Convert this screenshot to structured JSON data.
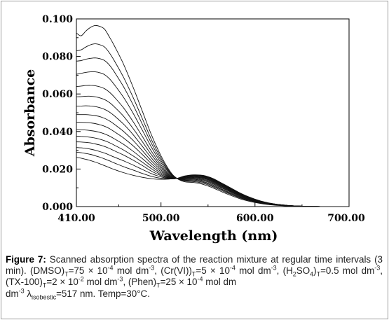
{
  "chart_data": {
    "type": "line",
    "xlabel": "Wavelength (nm)",
    "ylabel": "Absorbance",
    "xlim": [
      410,
      700
    ],
    "ylim": [
      0.0,
      0.1
    ],
    "x_ticks": [
      "410.00",
      "500.00",
      "600.00",
      "700.00"
    ],
    "y_ticks": [
      "0.000",
      "0.020",
      "0.040",
      "0.060",
      "0.080",
      "0.100"
    ],
    "grid": false,
    "x": [
      410,
      415,
      420,
      425,
      430,
      435,
      440,
      445,
      450,
      460,
      470,
      480,
      490,
      500,
      510,
      517,
      525,
      535,
      545,
      555,
      565,
      575,
      585,
      595,
      605,
      615,
      625,
      635,
      645,
      660,
      680,
      700
    ],
    "series": [
      {
        "values": [
          0.0925,
          0.091,
          0.0935,
          0.0955,
          0.0965,
          0.096,
          0.0945,
          0.0905,
          0.086,
          0.076,
          0.064,
          0.051,
          0.038,
          0.027,
          0.0185,
          0.015,
          0.0132,
          0.0128,
          0.0118,
          0.01,
          0.0078,
          0.0058,
          0.004,
          0.0027,
          0.0017,
          0.001,
          0.0006,
          0.0003,
          0.0002,
          0.0001,
          0.0,
          0.0
        ]
      },
      {
        "values": [
          0.083,
          0.0835,
          0.085,
          0.0862,
          0.0867,
          0.0862,
          0.085,
          0.082,
          0.078,
          0.069,
          0.0585,
          0.047,
          0.0355,
          0.0258,
          0.018,
          0.015,
          0.0136,
          0.0133,
          0.0124,
          0.0106,
          0.0084,
          0.0063,
          0.0044,
          0.003,
          0.0019,
          0.0011,
          0.0007,
          0.0004,
          0.0002,
          0.0001,
          0.0,
          0.0
        ]
      },
      {
        "values": [
          0.0775,
          0.0778,
          0.0785,
          0.079,
          0.0792,
          0.0788,
          0.0778,
          0.0755,
          0.072,
          0.064,
          0.0545,
          0.044,
          0.0335,
          0.0246,
          0.0176,
          0.015,
          0.0139,
          0.0137,
          0.0129,
          0.0111,
          0.0089,
          0.0067,
          0.0047,
          0.0032,
          0.0021,
          0.0012,
          0.0007,
          0.0004,
          0.0002,
          0.0001,
          0.0,
          0.0
        ]
      },
      {
        "values": [
          0.0705,
          0.071,
          0.0715,
          0.0718,
          0.0718,
          0.0713,
          0.0703,
          0.0682,
          0.0652,
          0.0583,
          0.05,
          0.0408,
          0.0315,
          0.0234,
          0.0172,
          0.015,
          0.0142,
          0.0141,
          0.0133,
          0.0116,
          0.0093,
          0.0071,
          0.005,
          0.0034,
          0.0022,
          0.0013,
          0.0008,
          0.0004,
          0.0002,
          0.0001,
          0.0,
          0.0
        ]
      },
      {
        "values": [
          0.064,
          0.0642,
          0.0645,
          0.0646,
          0.0644,
          0.0638,
          0.0628,
          0.061,
          0.0585,
          0.0527,
          0.0455,
          0.0375,
          0.0293,
          0.0222,
          0.0167,
          0.015,
          0.0145,
          0.0145,
          0.0138,
          0.0121,
          0.0098,
          0.0075,
          0.0053,
          0.0036,
          0.0023,
          0.0014,
          0.0008,
          0.0005,
          0.0002,
          0.0001,
          0.0,
          0.0
        ]
      },
      {
        "values": [
          0.0585,
          0.0586,
          0.0588,
          0.0588,
          0.0585,
          0.0579,
          0.057,
          0.0555,
          0.0533,
          0.0482,
          0.0418,
          0.0347,
          0.0275,
          0.0212,
          0.0163,
          0.015,
          0.0148,
          0.0149,
          0.0142,
          0.0125,
          0.0102,
          0.0078,
          0.0056,
          0.0038,
          0.0024,
          0.0015,
          0.0009,
          0.0005,
          0.0003,
          0.0001,
          0.0,
          0.0
        ]
      },
      {
        "values": [
          0.0535,
          0.0536,
          0.0537,
          0.0536,
          0.0533,
          0.0527,
          0.0518,
          0.0504,
          0.0485,
          0.044,
          0.0385,
          0.0322,
          0.0258,
          0.0203,
          0.016,
          0.015,
          0.015,
          0.0152,
          0.0146,
          0.0129,
          0.0106,
          0.0081,
          0.0058,
          0.004,
          0.0025,
          0.0015,
          0.0009,
          0.0005,
          0.0003,
          0.0001,
          0.0,
          0.0
        ]
      },
      {
        "values": [
          0.049,
          0.049,
          0.049,
          0.0488,
          0.0485,
          0.0479,
          0.047,
          0.0457,
          0.044,
          0.0401,
          0.0354,
          0.0299,
          0.0242,
          0.0194,
          0.0157,
          0.015,
          0.0152,
          0.0155,
          0.015,
          0.0133,
          0.0109,
          0.0084,
          0.006,
          0.0041,
          0.0026,
          0.0016,
          0.001,
          0.0005,
          0.0003,
          0.0001,
          0.0,
          0.0
        ]
      },
      {
        "values": [
          0.045,
          0.0449,
          0.0448,
          0.0446,
          0.0442,
          0.0436,
          0.0428,
          0.0416,
          0.04,
          0.0366,
          0.0325,
          0.0278,
          0.0228,
          0.0186,
          0.0155,
          0.015,
          0.0154,
          0.0158,
          0.0153,
          0.0136,
          0.0112,
          0.0087,
          0.0062,
          0.0043,
          0.0027,
          0.0016,
          0.001,
          0.0006,
          0.0003,
          0.0001,
          0.0,
          0.0
        ]
      },
      {
        "values": [
          0.041,
          0.0409,
          0.0408,
          0.0405,
          0.0401,
          0.0395,
          0.0387,
          0.0376,
          0.0362,
          0.0332,
          0.0296,
          0.0256,
          0.0214,
          0.0178,
          0.0153,
          0.015,
          0.0156,
          0.0161,
          0.0156,
          0.0139,
          0.0115,
          0.0089,
          0.0064,
          0.0044,
          0.0028,
          0.0017,
          0.001,
          0.0006,
          0.0003,
          0.0001,
          0.0,
          0.0
        ]
      },
      {
        "values": [
          0.0375,
          0.0374,
          0.0372,
          0.0369,
          0.0365,
          0.0359,
          0.0351,
          0.0341,
          0.0328,
          0.0302,
          0.0271,
          0.0237,
          0.0201,
          0.0171,
          0.0151,
          0.015,
          0.0158,
          0.0163,
          0.0159,
          0.0142,
          0.0117,
          0.0091,
          0.0066,
          0.0045,
          0.0029,
          0.0017,
          0.001,
          0.0006,
          0.0003,
          0.0001,
          0.0,
          0.0
        ]
      },
      {
        "values": [
          0.0345,
          0.0344,
          0.0342,
          0.0339,
          0.0334,
          0.0328,
          0.032,
          0.031,
          0.0298,
          0.0275,
          0.0248,
          0.0219,
          0.0188,
          0.0165,
          0.015,
          0.015,
          0.016,
          0.0165,
          0.0161,
          0.0144,
          0.0119,
          0.0093,
          0.0067,
          0.0046,
          0.003,
          0.0018,
          0.0011,
          0.0006,
          0.0003,
          0.0001,
          0.0,
          0.0
        ]
      },
      {
        "values": [
          0.0315,
          0.0313,
          0.031,
          0.0306,
          0.03,
          0.0293,
          0.0285,
          0.0275,
          0.0264,
          0.0244,
          0.0222,
          0.0198,
          0.0175,
          0.0158,
          0.0149,
          0.015,
          0.0161,
          0.0167,
          0.0163,
          0.0146,
          0.0121,
          0.0094,
          0.0068,
          0.0047,
          0.003,
          0.0018,
          0.0011,
          0.0006,
          0.0003,
          0.0001,
          0.0,
          0.0
        ]
      },
      {
        "values": [
          0.029,
          0.0287,
          0.0283,
          0.0278,
          0.0271,
          0.0263,
          0.0254,
          0.0244,
          0.0233,
          0.0213,
          0.0195,
          0.0177,
          0.0161,
          0.0151,
          0.0148,
          0.015,
          0.0162,
          0.0168,
          0.0165,
          0.0148,
          0.0123,
          0.0096,
          0.0069,
          0.0048,
          0.0031,
          0.0019,
          0.0011,
          0.0006,
          0.0003,
          0.0001,
          0.0,
          0.0
        ]
      },
      {
        "values": [
          0.0262,
          0.0258,
          0.0252,
          0.0245,
          0.0237,
          0.0228,
          0.0218,
          0.0208,
          0.0198,
          0.0181,
          0.0167,
          0.0156,
          0.0148,
          0.0145,
          0.0147,
          0.015,
          0.0163,
          0.0169,
          0.0166,
          0.015,
          0.0124,
          0.0097,
          0.007,
          0.0048,
          0.0031,
          0.0019,
          0.0011,
          0.0006,
          0.0003,
          0.0001,
          0.0,
          0.0
        ]
      }
    ]
  },
  "caption": {
    "label": "Figure 7:",
    "s1": " Scanned absorption spectra of the reaction mixture at regular time intervals (3 min). (DMSO)",
    "sub_t": "T",
    "s2": "=75 × 10",
    "exp_neg4": "-4",
    "s3": " mol dm",
    "exp_neg3": "-3",
    "s4": ", (Cr(VI))",
    "s5": "=5 × 10",
    "s6": " mol dm",
    "s7": ", (H",
    "sub_2": "2",
    "s8": "SO",
    "sub_4": "4",
    "s9": ")",
    "s10": "=0.5 mol dm",
    "s11": ", (TX-100)",
    "s12": "=2 × 10",
    "exp_neg2": "-2",
    "s13": " mol dm",
    "s14": ", (Phen)",
    "s15": "=25 × 10",
    "s16": " mol dm",
    "s17": " λ",
    "sub_iso": "isobestic",
    "s18": "=517 nm. Temp=30°C."
  }
}
